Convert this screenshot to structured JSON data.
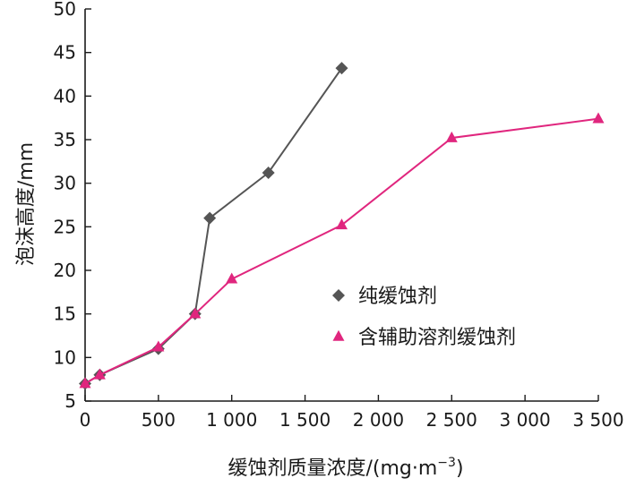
{
  "chart_data": {
    "type": "line",
    "title": "",
    "xlabel": "缓蚀剂质量浓度/(mg·m",
    "xlabel_exp": "−3",
    "xlabel_close": ")",
    "ylabel": "泡沫高度/mm",
    "xlim": [
      0,
      3500
    ],
    "ylim": [
      5,
      50
    ],
    "x_ticks": [
      0,
      500,
      1000,
      1500,
      2000,
      2500,
      3000,
      3500
    ],
    "x_tick_labels": [
      "0",
      "500",
      "1 000",
      "1 500",
      "2 000",
      "2 500",
      "3 000",
      "3 500"
    ],
    "y_ticks": [
      5,
      10,
      15,
      20,
      25,
      30,
      35,
      40,
      45,
      50
    ],
    "y_tick_labels": [
      "5",
      "10",
      "15",
      "20",
      "25",
      "30",
      "35",
      "40",
      "45",
      "50"
    ],
    "grid": false,
    "legend_position": "middle-right",
    "series": [
      {
        "name": "纯缓蚀剂",
        "marker": "diamond",
        "line_color": "#555555",
        "marker_color": "#555555",
        "x": [
          0,
          100,
          500,
          750,
          850,
          1250,
          1750
        ],
        "y": [
          7,
          8,
          11,
          15,
          26,
          31.2,
          43.2
        ]
      },
      {
        "name": "含辅助溶剂缓蚀剂",
        "marker": "triangle",
        "line_color": "#e0267e",
        "marker_color": "#e0267e",
        "x": [
          0,
          100,
          500,
          750,
          1000,
          1750,
          2500,
          3500
        ],
        "y": [
          7,
          8,
          11.2,
          15,
          19,
          25.2,
          35.2,
          37.4
        ]
      }
    ]
  }
}
